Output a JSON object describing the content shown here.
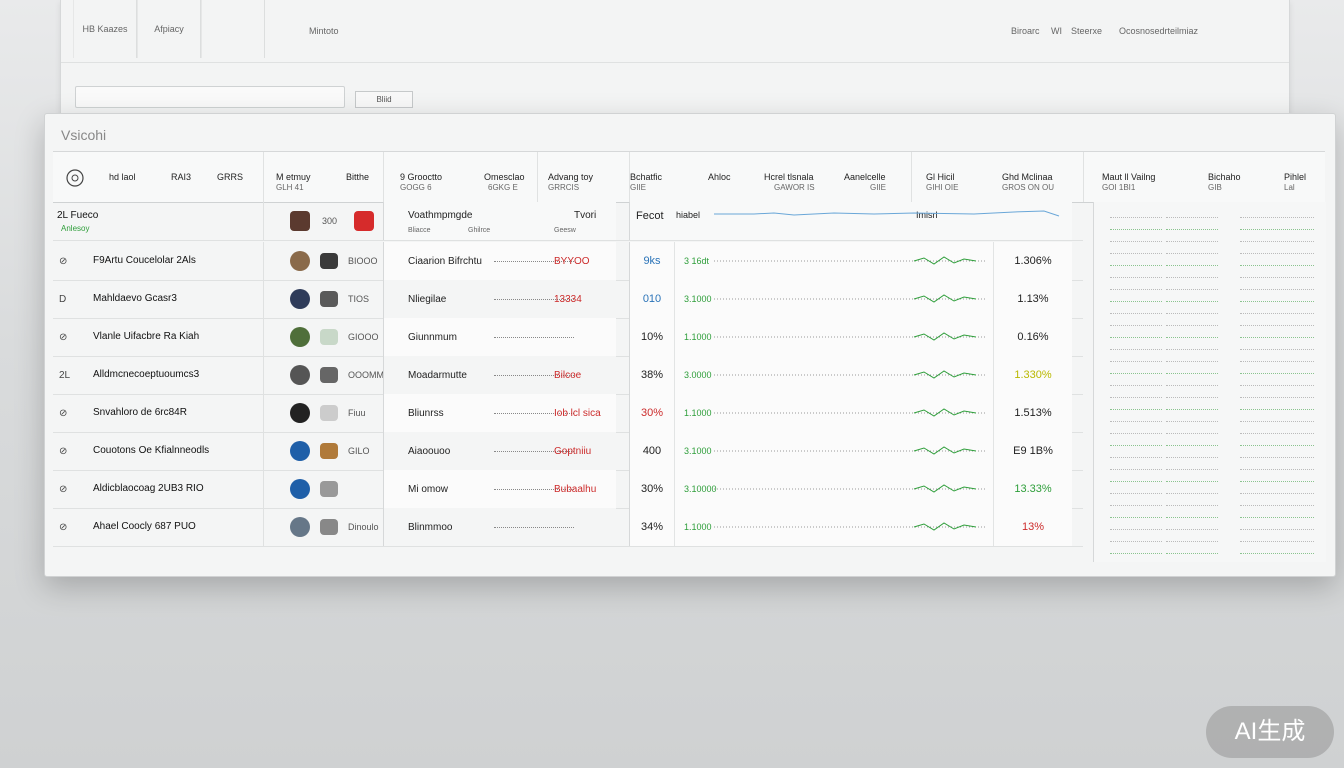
{
  "background_window": {
    "tabs": [
      "HB Kaazes",
      "Afpiacy"
    ],
    "center_label": "Mintoto",
    "right_labels": [
      "Biroarc",
      "WI",
      "Steerxe",
      "Ocosnosedrteilmiaz"
    ],
    "button_label": "Bliid"
  },
  "panel": {
    "title": "Vsicohi",
    "columns": [
      {
        "label": "hd laol",
        "sub": ""
      },
      {
        "label": "RAI3",
        "sub": ""
      },
      {
        "label": "GRRS",
        "sub": ""
      },
      {
        "label": "M etmuy",
        "sub": "GLH 41"
      },
      {
        "label": "Bitthe",
        "sub": ""
      },
      {
        "label": "9 Grooctto",
        "sub": "GOGG 6"
      },
      {
        "label": "Omesclao",
        "sub": "6GKG E"
      },
      {
        "label": "Advang toy",
        "sub": "GRRCIS"
      },
      {
        "label": "Bchatfic",
        "sub": "GIIE"
      },
      {
        "label": "Ahloc",
        "sub": ""
      },
      {
        "label": "Hcrel tlsnala",
        "sub": "GAWOR IS"
      },
      {
        "label": "Aanelcelle",
        "sub": "GIIE"
      },
      {
        "label": "Gl Hicil",
        "sub": "GIHI OIE"
      },
      {
        "label": "Ghd Mclinaa",
        "sub": "GROS ON OU"
      },
      {
        "label": "Maut ll Vailng",
        "sub": "GOI 1BI1"
      },
      {
        "label": "Bichaho",
        "sub": "GIB"
      },
      {
        "label": "Pihlel",
        "sub": "Lal"
      }
    ],
    "rows": [
      {
        "icon": "",
        "name": "2L Fueco",
        "sub": "Anlesoy",
        "img_text": "300",
        "a_left": "Voathmpmgde",
        "a_right": "Tvori",
        "a_sub": [
          "Bliacce",
          "Ghilrce",
          "Geesw"
        ],
        "pct": "Fecot",
        "lead": "hiabel",
        "val": "Imisrl"
      },
      {
        "icon": "⊘",
        "name": "F9Artu Coucelolar 2Als",
        "img_text": "BIOOO",
        "a_left": "Ciaarion Bifrchtu",
        "a_right": "BYYOO",
        "pct": "9ks",
        "lead": "3 16dt",
        "val": "1.306%"
      },
      {
        "icon": "D",
        "name": "Mahldaevo Gcasr3",
        "img_text": "TIOS",
        "a_left": "Nliegilae",
        "a_right": "13334",
        "pct": "010",
        "lead": "3.1000",
        "val": "1.13%"
      },
      {
        "icon": "⊘",
        "name": "Vlanle Uifacbre Ra Kiah",
        "img_text": "GIOOO",
        "a_left": "Giunnmum",
        "a_right": "",
        "pct": "10%",
        "lead": "1.1000",
        "val": "0.16%"
      },
      {
        "icon": "2L",
        "name": "Alldmcnecoeptuoumcs3",
        "img_text": "OOOMMOO",
        "a_left": "Moadarmutte",
        "a_right": "Bilcoe",
        "pct": "38%",
        "lead": "3.0000",
        "val": "1.330%"
      },
      {
        "icon": "⊘",
        "name": "Snvahloro de 6rc84R",
        "img_text": "Fiuu",
        "a_left": "Bliunrss",
        "a_right": "Iob lcl sica",
        "pct": "30%",
        "lead": "1.1000",
        "val": "1.513%"
      },
      {
        "icon": "⊘",
        "name": "Couotons Oe Kfialnneodls",
        "img_text": "GILO",
        "a_left": "Aiaoouoo",
        "a_right": "Goptniiu",
        "pct": "400",
        "lead": "3.1000",
        "val": "E9 1B%"
      },
      {
        "icon": "⊘",
        "name": "Aldicblaocoag 2UB3 RIO",
        "img_text": "",
        "a_left": "Mi omow",
        "a_right": "Bubaalhu",
        "pct": "30%",
        "lead": "3.10000",
        "val": "13.33%"
      },
      {
        "icon": "⊘",
        "name": "Ahael Coocly 687 PUO",
        "img_text": "Dinoulo",
        "a_left": "Blinmmoo",
        "a_right": "",
        "pct": "34%",
        "lead": "1.1000",
        "val": "13%"
      }
    ]
  },
  "watermark": "AI生成",
  "colors": {
    "accent_green": "#2e9e3a",
    "accent_red": "#cc2b2b",
    "accent_blue": "#2a73b8",
    "accent_yellow": "#b9b800"
  }
}
